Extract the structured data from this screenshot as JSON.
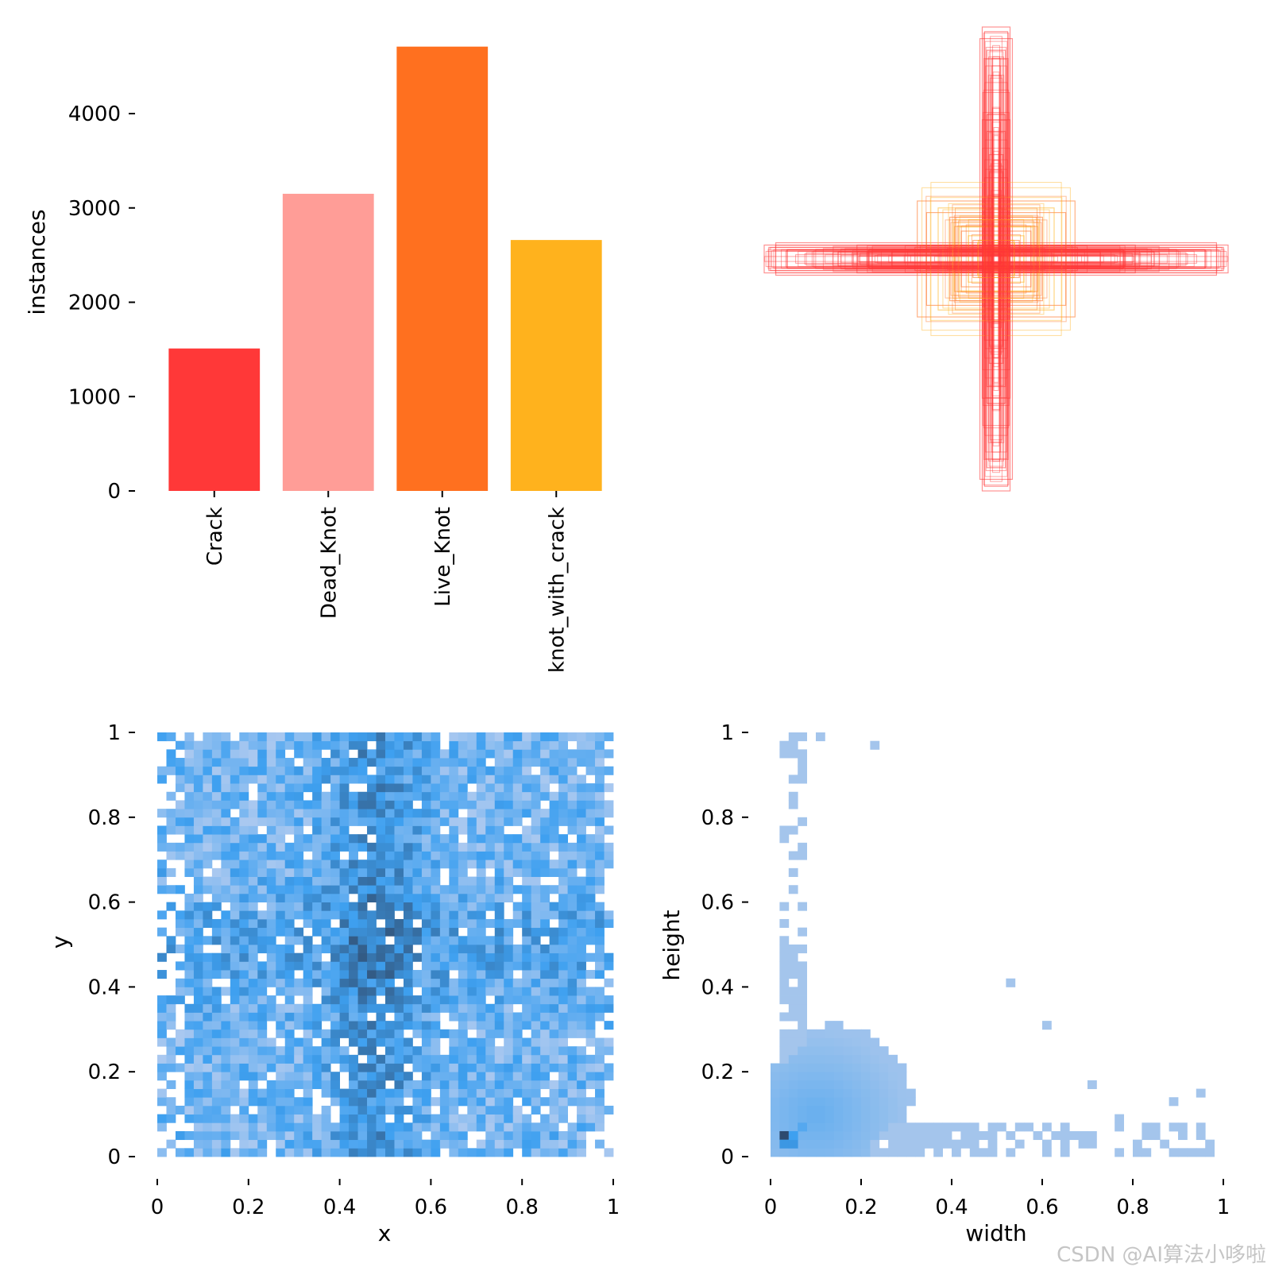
{
  "watermark": "CSDN @AI算法小哆啦",
  "chart_data": [
    {
      "type": "bar",
      "categories": [
        "Crack",
        "Dead_Knot",
        "Live_Knot",
        "knot_with_crack"
      ],
      "values": [
        1510,
        3150,
        4710,
        2660
      ],
      "colors": [
        "#ff3838",
        "#ff9d97",
        "#ff701f",
        "#ffb21d"
      ],
      "xlabel": "",
      "ylabel": "instances",
      "ylim": [
        0,
        4800
      ],
      "yticks": [
        0,
        1000,
        2000,
        3000,
        4000
      ]
    },
    {
      "type": "box_overlay",
      "description_label": "",
      "colors": [
        "#ff3838",
        "#ff701f",
        "#ffb21d"
      ],
      "boxes": [
        {
          "w": 1.0,
          "h": 0.06,
          "class": 0
        },
        {
          "w": 0.98,
          "h": 0.05,
          "class": 0
        },
        {
          "w": 0.95,
          "h": 0.07,
          "class": 0
        },
        {
          "w": 0.9,
          "h": 0.04,
          "class": 0
        },
        {
          "w": 0.6,
          "h": 0.06,
          "class": 0
        },
        {
          "w": 0.55,
          "h": 0.04,
          "class": 0
        },
        {
          "w": 0.45,
          "h": 0.03,
          "class": 0
        },
        {
          "w": 0.35,
          "h": 0.05,
          "class": 0
        },
        {
          "w": 0.06,
          "h": 1.0,
          "class": 0
        },
        {
          "w": 0.05,
          "h": 0.98,
          "class": 0
        },
        {
          "w": 0.07,
          "h": 0.95,
          "class": 0
        },
        {
          "w": 0.04,
          "h": 0.9,
          "class": 0
        },
        {
          "w": 0.06,
          "h": 0.6,
          "class": 0
        },
        {
          "w": 0.04,
          "h": 0.55,
          "class": 0
        },
        {
          "w": 0.03,
          "h": 0.45,
          "class": 0
        },
        {
          "w": 0.05,
          "h": 0.35,
          "class": 0
        },
        {
          "w": 0.34,
          "h": 0.25,
          "class": 1
        },
        {
          "w": 0.3,
          "h": 0.2,
          "class": 1
        },
        {
          "w": 0.25,
          "h": 0.22,
          "class": 2
        },
        {
          "w": 0.2,
          "h": 0.18,
          "class": 1
        },
        {
          "w": 0.18,
          "h": 0.14,
          "class": 2
        },
        {
          "w": 0.15,
          "h": 0.12,
          "class": 1
        },
        {
          "w": 0.12,
          "h": 0.1,
          "class": 2
        },
        {
          "w": 0.1,
          "h": 0.08,
          "class": 1
        },
        {
          "w": 0.08,
          "h": 0.07,
          "class": 2
        },
        {
          "w": 0.05,
          "h": 0.05,
          "class": 1
        },
        {
          "w": 0.03,
          "h": 0.03,
          "class": 0
        },
        {
          "w": 0.02,
          "h": 0.02,
          "class": 0
        }
      ]
    },
    {
      "type": "heatmap",
      "xlabel": "x",
      "ylabel": "y",
      "xlim": [
        0,
        1
      ],
      "ylim": [
        0,
        1
      ],
      "xticks": [
        0.0,
        0.2,
        0.4,
        0.6,
        0.8,
        1.0
      ],
      "yticks": [
        0.0,
        0.2,
        0.4,
        0.6,
        0.8,
        1.0
      ],
      "bins": 50,
      "data_extent": {
        "x": [
          0.0,
          1.0
        ],
        "y": [
          0.0,
          1.0
        ]
      },
      "density": "roughly uniform, denser along x≈0.45–0.55 and y≈0.45–0.55",
      "colors": [
        "#a9c8f0",
        "#3ea0f0",
        "#335b85"
      ]
    },
    {
      "type": "heatmap",
      "xlabel": "width",
      "ylabel": "height",
      "xlim": [
        0,
        1
      ],
      "ylim": [
        0,
        1
      ],
      "xticks": [
        0.0,
        0.2,
        0.4,
        0.6,
        0.8,
        1.0
      ],
      "yticks": [
        0.0,
        0.2,
        0.4,
        0.6,
        0.8,
        1.0
      ],
      "bins": 50,
      "density": "concentrated near (0.03,0.05); thin L-shaped tails along width≈0.03 and height≈0.03",
      "colors": [
        "#afc9ec",
        "#3ea0f0",
        "#2d4a6e"
      ]
    }
  ]
}
